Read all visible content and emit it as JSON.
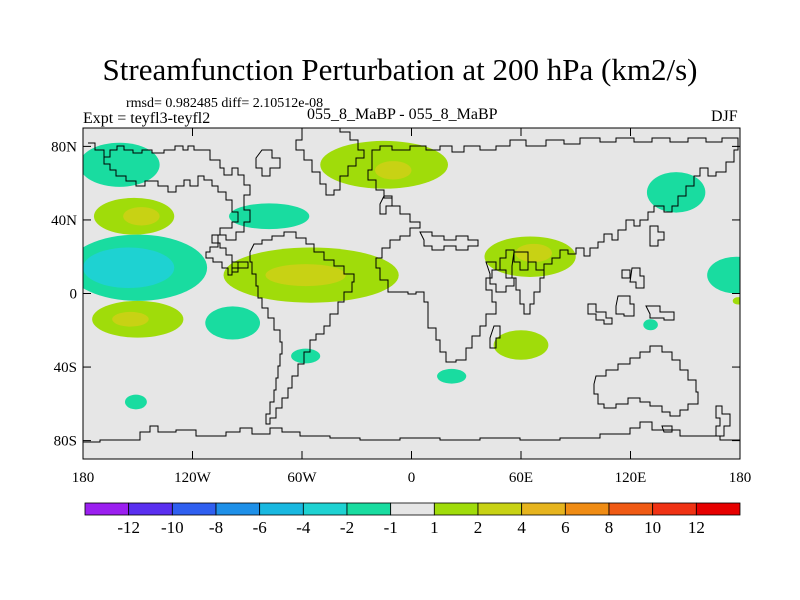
{
  "chart_data": {
    "type": "heatmap",
    "title": "Streamfunction Perturbation at 200 hPa (km2/s)",
    "subtitle_stats": "rmsd= 0.982485 diff= 2.10512e-08",
    "experiment": "Expt = teyfl3-teyfl2",
    "runs": "055_8_MaBP - 055_8_MaBP",
    "season": "DJF",
    "xlabel": "",
    "ylabel": "",
    "xlim": [
      -180,
      180
    ],
    "ylim": [
      -90,
      90
    ],
    "x_ticks": [
      {
        "value": -180,
        "label": "180"
      },
      {
        "value": -120,
        "label": "120W"
      },
      {
        "value": -60,
        "label": "60W"
      },
      {
        "value": 0,
        "label": "0"
      },
      {
        "value": 60,
        "label": "60E"
      },
      {
        "value": 120,
        "label": "120E"
      },
      {
        "value": 180,
        "label": "180"
      }
    ],
    "y_ticks": [
      {
        "value": 80,
        "label": "80N"
      },
      {
        "value": 40,
        "label": "40N"
      },
      {
        "value": 0,
        "label": "0"
      },
      {
        "value": -40,
        "label": "40S"
      },
      {
        "value": -80,
        "label": "80S"
      }
    ],
    "levels": [
      {
        "label": "-12",
        "color": "#9b1ff0"
      },
      {
        "label": "-10",
        "color": "#5a2ff0"
      },
      {
        "label": "-8",
        "color": "#2f5ff0"
      },
      {
        "label": "-6",
        "color": "#1e90e8"
      },
      {
        "label": "-4",
        "color": "#19b8e0"
      },
      {
        "label": "-2",
        "color": "#1ed2d2"
      },
      {
        "label": "-1",
        "color": "#19dca0"
      },
      {
        "label": "1",
        "color": "#e6e6e6"
      },
      {
        "label": "2",
        "color": "#a0dc0a"
      },
      {
        "label": "4",
        "color": "#c8d214"
      },
      {
        "label": "6",
        "color": "#e6b41e"
      },
      {
        "label": "8",
        "color": "#f08c14"
      },
      {
        "label": "10",
        "color": "#f05a14"
      },
      {
        "label": "12",
        "color": "#f03214"
      },
      {
        "label": "",
        "color": "#e60000"
      }
    ],
    "background_color": "#e6e6e6",
    "anomalies": [
      {
        "lon": -160,
        "lat": 70,
        "rlon": 22,
        "rlat": 12,
        "value": -1.5
      },
      {
        "lon": -152,
        "lat": 42,
        "rlon": 22,
        "rlat": 10,
        "value": 2.5
      },
      {
        "lon": -148,
        "lat": 42,
        "rlon": 10,
        "rlat": 5,
        "value": 4.5
      },
      {
        "lon": -150,
        "lat": 14,
        "rlon": 38,
        "rlat": 18,
        "value": -1.5
      },
      {
        "lon": -155,
        "lat": 14,
        "rlon": 25,
        "rlat": 11,
        "value": -3
      },
      {
        "lon": -150,
        "lat": -14,
        "rlon": 25,
        "rlat": 10,
        "value": 2.5
      },
      {
        "lon": -154,
        "lat": -14,
        "rlon": 10,
        "rlat": 4,
        "value": 4.5
      },
      {
        "lon": -98,
        "lat": -16,
        "rlon": 15,
        "rlat": 9,
        "value": -1.5
      },
      {
        "lon": -78,
        "lat": 42,
        "rlon": 22,
        "rlat": 7,
        "value": -1.5
      },
      {
        "lon": -55,
        "lat": 10,
        "rlon": 48,
        "rlat": 15,
        "value": 2.5
      },
      {
        "lon": -58,
        "lat": 10,
        "rlon": 22,
        "rlat": 6,
        "value": 4.5
      },
      {
        "lon": -15,
        "lat": 70,
        "rlon": 35,
        "rlat": 13,
        "value": 2.5
      },
      {
        "lon": -10,
        "lat": 67,
        "rlon": 10,
        "rlat": 5,
        "value": 4.5
      },
      {
        "lon": -58,
        "lat": -34,
        "rlon": 8,
        "rlat": 4,
        "value": -1.5
      },
      {
        "lon": 65,
        "lat": 20,
        "rlon": 25,
        "rlat": 11,
        "value": 2.5
      },
      {
        "lon": 67,
        "lat": 22,
        "rlon": 10,
        "rlat": 5,
        "value": 4.5
      },
      {
        "lon": 60,
        "lat": -28,
        "rlon": 15,
        "rlat": 8,
        "value": 2.5
      },
      {
        "lon": 22,
        "lat": -45,
        "rlon": 8,
        "rlat": 4,
        "value": -1.5
      },
      {
        "lon": -151,
        "lat": -59,
        "rlon": 6,
        "rlat": 4,
        "value": -1.5
      },
      {
        "lon": 145,
        "lat": 55,
        "rlon": 16,
        "rlat": 11,
        "value": -1.5
      },
      {
        "lon": 178,
        "lat": 10,
        "rlon": 16,
        "rlat": 10,
        "value": -1.5
      },
      {
        "lon": 131,
        "lat": -17,
        "rlon": 4,
        "rlat": 3,
        "value": -1.5
      },
      {
        "lon": 179,
        "lat": -4,
        "rlon": 3,
        "rlat": 2,
        "value": 2.5
      }
    ]
  }
}
